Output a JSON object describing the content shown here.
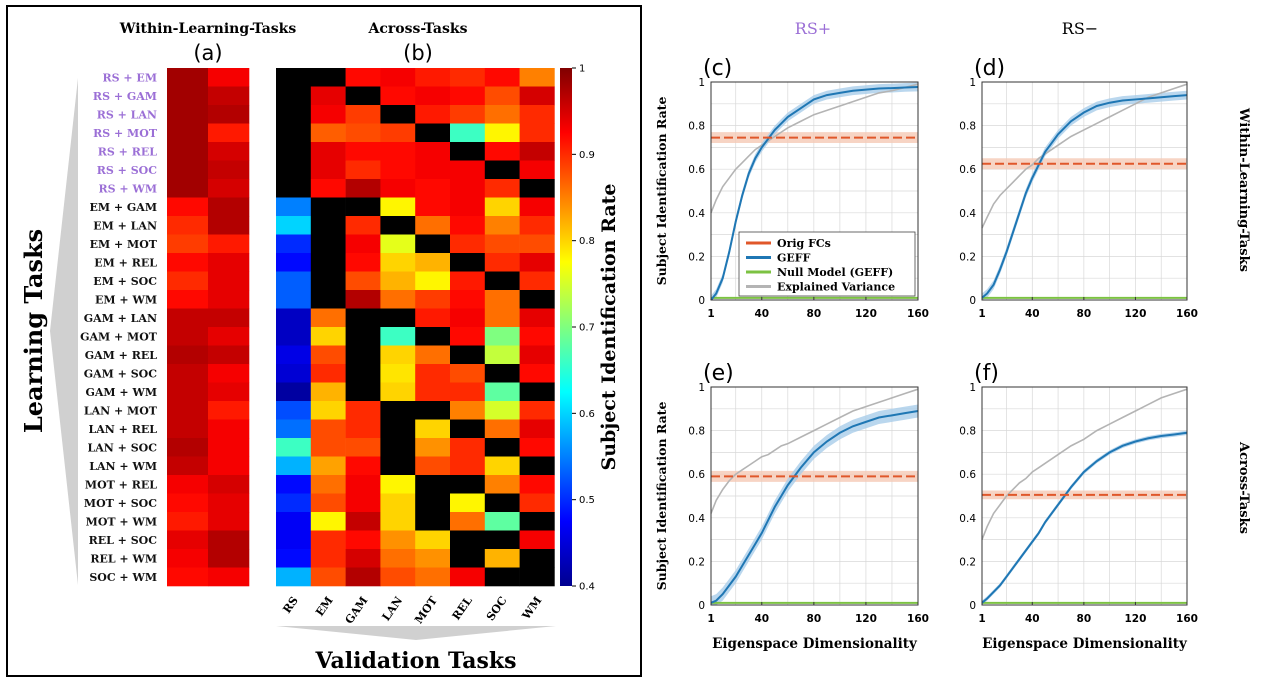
{
  "colors": {
    "rs_purple": "#9b6fd6",
    "orig": "#e0572a",
    "geff": "#1f77b4",
    "null": "#7cc242",
    "explained": "#b4b4b4",
    "band_orig": "#f5c9b5",
    "band_geff": "#a9cdea"
  },
  "left": {
    "panel_a_title": "Within-Learning-Tasks",
    "panel_a_letter": "(a)",
    "panel_b_title": "Across-Tasks",
    "panel_b_letter": "(b)",
    "y_axis_title": "Learning Tasks",
    "x_axis_title": "Validation Tasks",
    "colorbar_title": "Subject Identification Rate",
    "colorbar_ticks": [
      "1",
      "0.9",
      "0.8",
      "0.7",
      "0.6",
      "0.5",
      "0.4"
    ],
    "colorbar_tick_values": [
      1,
      0.9,
      0.8,
      0.7,
      0.6,
      0.5,
      0.4
    ],
    "rs_row_count": 7
  },
  "right": {
    "col_titles": [
      "RS+",
      "RS−"
    ],
    "row_titles": [
      "Within-Learning-Tasks",
      "Across-Tasks"
    ],
    "legend": [
      "Orig FCs",
      "GEFF",
      "Null Model (GEFF)",
      "Explained Variance"
    ],
    "y_axis_title": "Subject Identification Rate",
    "x_axis_title": "Eigenspace Dimensionality"
  },
  "chart_data": [
    {
      "id": "heatmap",
      "type": "heatmap",
      "title": "",
      "panels": [
        "(a) Within-Learning-Tasks",
        "(b) Across-Tasks"
      ],
      "rows": [
        "RS + EM",
        "RS + GAM",
        "RS + LAN",
        "RS + MOT",
        "RS + REL",
        "RS + SOC",
        "RS + WM",
        "EM + GAM",
        "EM + LAN",
        "EM + MOT",
        "EM + REL",
        "EM + SOC",
        "EM + WM",
        "GAM + LAN",
        "GAM + MOT",
        "GAM + REL",
        "GAM + SOC",
        "GAM + WM",
        "LAN + MOT",
        "LAN + REL",
        "LAN + SOC",
        "LAN + WM",
        "MOT + REL",
        "MOT + SOC",
        "MOT + WM",
        "REL + SOC",
        "REL + WM",
        "SOC + WM"
      ],
      "columns_b": [
        "RS",
        "EM",
        "GAM",
        "LAN",
        "MOT",
        "REL",
        "SOC",
        "WM"
      ],
      "color_range": [
        0.4,
        1
      ],
      "values_a": [
        [
          0.98,
          0.93
        ],
        [
          0.98,
          0.96
        ],
        [
          0.98,
          0.97
        ],
        [
          0.98,
          0.91
        ],
        [
          0.98,
          0.95
        ],
        [
          0.98,
          0.96
        ],
        [
          0.98,
          0.95
        ],
        [
          0.92,
          0.97
        ],
        [
          0.9,
          0.97
        ],
        [
          0.89,
          0.91
        ],
        [
          0.92,
          0.94
        ],
        [
          0.9,
          0.94
        ],
        [
          0.92,
          0.94
        ],
        [
          0.96,
          0.96
        ],
        [
          0.96,
          0.94
        ],
        [
          0.97,
          0.96
        ],
        [
          0.96,
          0.93
        ],
        [
          0.96,
          0.94
        ],
        [
          0.96,
          0.91
        ],
        [
          0.96,
          0.93
        ],
        [
          0.97,
          0.93
        ],
        [
          0.96,
          0.93
        ],
        [
          0.93,
          0.95
        ],
        [
          0.92,
          0.94
        ],
        [
          0.91,
          0.94
        ],
        [
          0.94,
          0.97
        ],
        [
          0.93,
          0.97
        ],
        [
          0.92,
          0.93
        ]
      ],
      "values_b": [
        [
          null,
          null,
          0.92,
          0.93,
          0.91,
          0.9,
          0.92,
          0.85
        ],
        [
          null,
          0.94,
          null,
          0.92,
          0.93,
          0.92,
          0.88,
          0.95
        ],
        [
          null,
          0.93,
          0.89,
          null,
          0.91,
          0.89,
          0.86,
          0.9
        ],
        [
          null,
          0.87,
          0.88,
          0.89,
          null,
          0.66,
          0.78,
          0.9
        ],
        [
          null,
          0.94,
          0.92,
          0.92,
          0.93,
          null,
          0.92,
          0.96
        ],
        [
          null,
          0.94,
          0.9,
          0.92,
          0.93,
          0.93,
          null,
          0.93
        ],
        [
          null,
          0.92,
          0.97,
          0.93,
          0.92,
          0.93,
          0.9,
          null
        ],
        [
          0.55,
          null,
          null,
          0.78,
          0.92,
          0.93,
          0.8,
          0.93
        ],
        [
          0.6,
          null,
          0.9,
          null,
          0.86,
          0.92,
          0.85,
          0.9
        ],
        [
          0.5,
          null,
          0.93,
          0.76,
          null,
          0.9,
          0.88,
          0.88
        ],
        [
          0.48,
          null,
          0.92,
          0.8,
          0.82,
          null,
          0.9,
          0.94
        ],
        [
          0.53,
          null,
          0.88,
          0.82,
          0.78,
          0.91,
          null,
          0.9
        ],
        [
          0.53,
          null,
          0.97,
          0.86,
          0.89,
          0.92,
          0.86,
          null
        ],
        [
          0.44,
          0.86,
          null,
          null,
          0.91,
          0.93,
          0.86,
          0.94
        ],
        [
          0.44,
          0.8,
          null,
          0.66,
          null,
          0.92,
          0.7,
          0.92
        ],
        [
          0.46,
          0.88,
          null,
          0.8,
          0.86,
          null,
          0.74,
          0.94
        ],
        [
          0.45,
          0.9,
          null,
          0.79,
          0.9,
          0.88,
          null,
          0.92
        ],
        [
          0.42,
          0.82,
          null,
          0.8,
          0.9,
          0.9,
          0.68,
          null
        ],
        [
          0.52,
          0.8,
          0.9,
          null,
          null,
          0.85,
          0.75,
          0.9
        ],
        [
          0.54,
          0.88,
          0.9,
          null,
          0.8,
          null,
          0.86,
          0.94
        ],
        [
          0.66,
          0.88,
          0.88,
          null,
          0.84,
          0.9,
          null,
          0.92
        ],
        [
          0.58,
          0.83,
          0.92,
          null,
          0.88,
          0.9,
          0.8,
          null
        ],
        [
          0.48,
          0.86,
          0.93,
          0.78,
          null,
          null,
          0.85,
          0.92
        ],
        [
          0.5,
          0.88,
          0.93,
          0.8,
          null,
          0.78,
          null,
          0.9
        ],
        [
          0.47,
          0.78,
          0.96,
          0.8,
          null,
          0.86,
          0.68,
          null
        ],
        [
          0.47,
          0.9,
          0.92,
          0.84,
          0.8,
          null,
          null,
          0.93
        ],
        [
          0.48,
          0.9,
          0.95,
          0.86,
          0.84,
          null,
          0.82,
          null
        ],
        [
          0.58,
          0.88,
          0.97,
          0.88,
          0.86,
          0.93,
          null,
          null
        ]
      ]
    },
    {
      "id": "c",
      "type": "line",
      "title": "(c)",
      "xlabel": "",
      "ylabel": "Subject Identification Rate",
      "xlim": [
        1,
        160
      ],
      "ylim": [
        0,
        1
      ],
      "xticks": [
        1,
        40,
        80,
        120,
        160
      ],
      "yticks": [
        0,
        0.2,
        0.4,
        0.6,
        0.8,
        1
      ],
      "x": [
        1,
        5,
        10,
        15,
        20,
        25,
        30,
        35,
        40,
        45,
        50,
        55,
        60,
        70,
        80,
        90,
        100,
        110,
        120,
        130,
        140,
        150,
        160
      ],
      "series": [
        {
          "name": "Orig FCs",
          "values": [
            0.745,
            0.745,
            0.745,
            0.745,
            0.745,
            0.745,
            0.745,
            0.745,
            0.745,
            0.745,
            0.745,
            0.745,
            0.745,
            0.745,
            0.745,
            0.745,
            0.745,
            0.745,
            0.745,
            0.745,
            0.745,
            0.745,
            0.745
          ],
          "band": 0.025
        },
        {
          "name": "GEFF",
          "values": [
            0.0,
            0.03,
            0.1,
            0.22,
            0.36,
            0.48,
            0.58,
            0.65,
            0.7,
            0.74,
            0.78,
            0.81,
            0.84,
            0.88,
            0.92,
            0.94,
            0.95,
            0.96,
            0.965,
            0.97,
            0.972,
            0.975,
            0.977
          ],
          "band": 0.02
        },
        {
          "name": "Null Model (GEFF)",
          "values": [
            0.01,
            0.01,
            0.01,
            0.01,
            0.01,
            0.01,
            0.01,
            0.01,
            0.01,
            0.01,
            0.01,
            0.01,
            0.01,
            0.01,
            0.01,
            0.01,
            0.01,
            0.01,
            0.01,
            0.01,
            0.01,
            0.01,
            0.01
          ]
        },
        {
          "name": "Explained Variance",
          "values": [
            0.4,
            0.46,
            0.52,
            0.56,
            0.6,
            0.63,
            0.66,
            0.69,
            0.71,
            0.73,
            0.75,
            0.77,
            0.79,
            0.82,
            0.85,
            0.87,
            0.89,
            0.91,
            0.93,
            0.95,
            0.96,
            0.975,
            0.99
          ]
        }
      ]
    },
    {
      "id": "d",
      "type": "line",
      "title": "(d)",
      "xlabel": "",
      "ylabel": "",
      "xlim": [
        1,
        160
      ],
      "ylim": [
        0,
        1
      ],
      "xticks": [
        1,
        40,
        80,
        120,
        160
      ],
      "yticks": [
        0,
        0.2,
        0.4,
        0.6,
        0.8,
        1
      ],
      "x": [
        1,
        5,
        10,
        15,
        20,
        25,
        30,
        35,
        40,
        45,
        50,
        55,
        60,
        70,
        80,
        90,
        100,
        110,
        120,
        130,
        140,
        150,
        160
      ],
      "series": [
        {
          "name": "Orig FCs",
          "values": [
            0.625,
            0.625,
            0.625,
            0.625,
            0.625,
            0.625,
            0.625,
            0.625,
            0.625,
            0.625,
            0.625,
            0.625,
            0.625,
            0.625,
            0.625,
            0.625,
            0.625,
            0.625,
            0.625,
            0.625,
            0.625,
            0.625,
            0.625
          ],
          "band": 0.025
        },
        {
          "name": "GEFF",
          "values": [
            0.01,
            0.03,
            0.07,
            0.14,
            0.22,
            0.31,
            0.4,
            0.49,
            0.56,
            0.62,
            0.68,
            0.72,
            0.76,
            0.82,
            0.86,
            0.89,
            0.905,
            0.915,
            0.92,
            0.925,
            0.93,
            0.935,
            0.94
          ],
          "band": 0.02
        },
        {
          "name": "Null Model (GEFF)",
          "values": [
            0.01,
            0.01,
            0.01,
            0.01,
            0.01,
            0.01,
            0.01,
            0.01,
            0.01,
            0.01,
            0.01,
            0.01,
            0.01,
            0.01,
            0.01,
            0.01,
            0.01,
            0.01,
            0.01,
            0.01,
            0.01,
            0.01,
            0.01
          ]
        },
        {
          "name": "Explained Variance",
          "values": [
            0.33,
            0.38,
            0.44,
            0.48,
            0.51,
            0.54,
            0.57,
            0.6,
            0.62,
            0.65,
            0.67,
            0.69,
            0.71,
            0.75,
            0.78,
            0.81,
            0.84,
            0.87,
            0.9,
            0.93,
            0.95,
            0.97,
            0.99
          ]
        }
      ]
    },
    {
      "id": "e",
      "type": "line",
      "title": "(e)",
      "xlabel": "Eigenspace Dimensionality",
      "ylabel": "Subject Identification Rate",
      "xlim": [
        1,
        160
      ],
      "ylim": [
        0,
        1
      ],
      "xticks": [
        1,
        40,
        80,
        120,
        160
      ],
      "yticks": [
        0,
        0.2,
        0.4,
        0.6,
        0.8,
        1
      ],
      "x": [
        1,
        5,
        10,
        15,
        20,
        25,
        30,
        35,
        40,
        45,
        50,
        55,
        60,
        70,
        80,
        90,
        100,
        110,
        120,
        130,
        140,
        150,
        160
      ],
      "series": [
        {
          "name": "Orig FCs",
          "values": [
            0.59,
            0.59,
            0.59,
            0.59,
            0.59,
            0.59,
            0.59,
            0.59,
            0.59,
            0.59,
            0.59,
            0.59,
            0.59,
            0.59,
            0.59,
            0.59,
            0.59,
            0.59,
            0.59,
            0.59,
            0.59,
            0.59,
            0.59
          ],
          "band": 0.025
        },
        {
          "name": "GEFF",
          "values": [
            0.01,
            0.02,
            0.05,
            0.09,
            0.13,
            0.18,
            0.23,
            0.28,
            0.33,
            0.39,
            0.45,
            0.5,
            0.55,
            0.63,
            0.7,
            0.75,
            0.79,
            0.82,
            0.84,
            0.86,
            0.87,
            0.88,
            0.89
          ],
          "band": 0.03
        },
        {
          "name": "Null Model (GEFF)",
          "values": [
            0.01,
            0.01,
            0.01,
            0.01,
            0.01,
            0.01,
            0.01,
            0.01,
            0.01,
            0.01,
            0.01,
            0.01,
            0.01,
            0.01,
            0.01,
            0.01,
            0.01,
            0.01,
            0.01,
            0.01,
            0.01,
            0.01,
            0.01
          ]
        },
        {
          "name": "Explained Variance",
          "values": [
            0.42,
            0.48,
            0.53,
            0.57,
            0.6,
            0.62,
            0.64,
            0.66,
            0.68,
            0.69,
            0.71,
            0.73,
            0.74,
            0.77,
            0.8,
            0.83,
            0.86,
            0.89,
            0.91,
            0.93,
            0.95,
            0.97,
            0.99
          ]
        }
      ]
    },
    {
      "id": "f",
      "type": "line",
      "title": "(f)",
      "xlabel": "Eigenspace Dimensionality",
      "ylabel": "",
      "xlim": [
        1,
        160
      ],
      "ylim": [
        0,
        1
      ],
      "xticks": [
        1,
        40,
        80,
        120,
        160
      ],
      "yticks": [
        0,
        0.2,
        0.4,
        0.6,
        0.8,
        1
      ],
      "x": [
        1,
        5,
        10,
        15,
        20,
        25,
        30,
        35,
        40,
        45,
        50,
        55,
        60,
        70,
        80,
        90,
        100,
        110,
        120,
        130,
        140,
        150,
        160
      ],
      "series": [
        {
          "name": "Orig FCs",
          "values": [
            0.505,
            0.505,
            0.505,
            0.505,
            0.505,
            0.505,
            0.505,
            0.505,
            0.505,
            0.505,
            0.505,
            0.505,
            0.505,
            0.505,
            0.505,
            0.505,
            0.505,
            0.505,
            0.505,
            0.505,
            0.505,
            0.505,
            0.505
          ],
          "band": 0.02
        },
        {
          "name": "GEFF",
          "values": [
            0.01,
            0.03,
            0.06,
            0.09,
            0.13,
            0.17,
            0.21,
            0.25,
            0.29,
            0.33,
            0.38,
            0.42,
            0.46,
            0.54,
            0.61,
            0.66,
            0.7,
            0.73,
            0.75,
            0.765,
            0.775,
            0.782,
            0.79
          ],
          "band": 0.01
        },
        {
          "name": "Null Model (GEFF)",
          "values": [
            0.01,
            0.01,
            0.01,
            0.01,
            0.01,
            0.01,
            0.01,
            0.01,
            0.01,
            0.01,
            0.01,
            0.01,
            0.01,
            0.01,
            0.01,
            0.01,
            0.01,
            0.01,
            0.01,
            0.01,
            0.01,
            0.01,
            0.01
          ]
        },
        {
          "name": "Explained Variance",
          "values": [
            0.3,
            0.36,
            0.42,
            0.46,
            0.5,
            0.53,
            0.56,
            0.58,
            0.61,
            0.63,
            0.65,
            0.67,
            0.69,
            0.73,
            0.76,
            0.8,
            0.83,
            0.86,
            0.89,
            0.92,
            0.95,
            0.97,
            0.99
          ]
        }
      ]
    }
  ]
}
